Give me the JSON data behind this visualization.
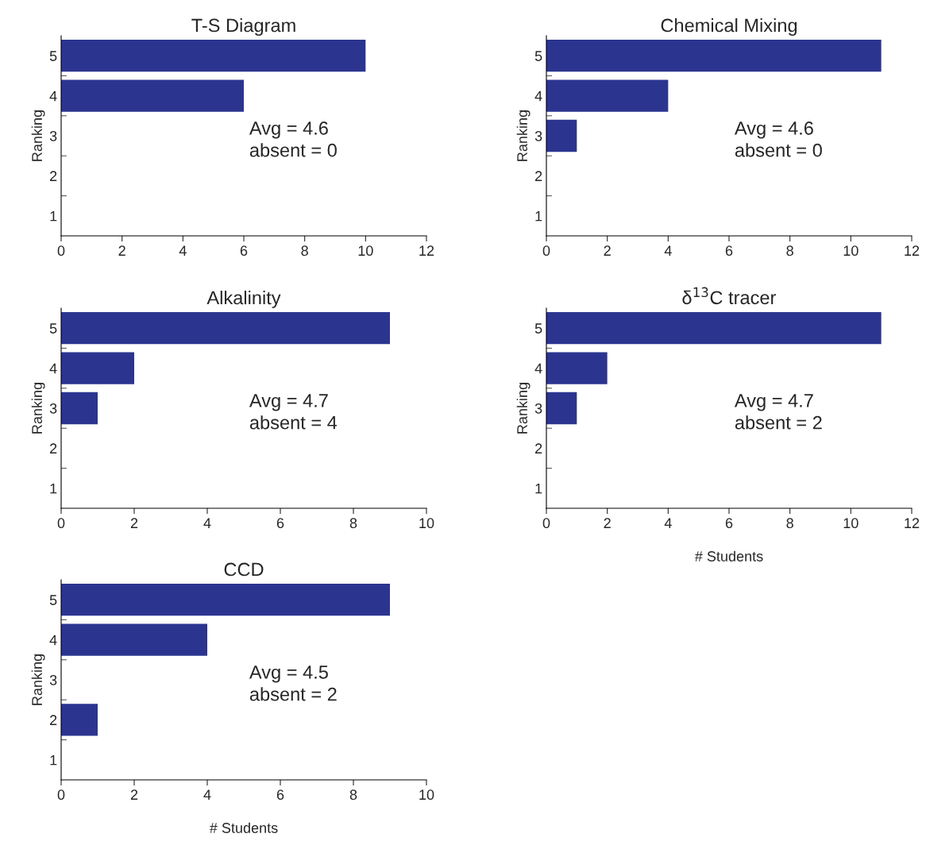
{
  "chart_data": [
    {
      "type": "bar",
      "orientation": "horizontal",
      "title": "T-S Diagram",
      "ylabel": "Ranking",
      "categories": [
        "5",
        "4",
        "3",
        "2",
        "1"
      ],
      "values": [
        10,
        6,
        0,
        0,
        0
      ],
      "color": "#2b3590",
      "xlim": [
        0,
        12
      ],
      "xticks": [
        0,
        2,
        4,
        6,
        8,
        10,
        12
      ],
      "grid": false,
      "legend": false,
      "annotations": [
        "Avg = 4.6",
        "absent = 0"
      ]
    },
    {
      "type": "bar",
      "orientation": "horizontal",
      "title": "Chemical Mixing",
      "ylabel": "Ranking",
      "categories": [
        "5",
        "4",
        "3",
        "2",
        "1"
      ],
      "values": [
        11,
        4,
        1,
        0,
        0
      ],
      "color": "#2b3590",
      "xlim": [
        0,
        12
      ],
      "xticks": [
        0,
        2,
        4,
        6,
        8,
        10,
        12
      ],
      "grid": false,
      "legend": false,
      "annotations": [
        "Avg = 4.6",
        "absent = 0"
      ]
    },
    {
      "type": "bar",
      "orientation": "horizontal",
      "title": "Alkalinity",
      "ylabel": "Ranking",
      "categories": [
        "5",
        "4",
        "3",
        "2",
        "1"
      ],
      "values": [
        9,
        2,
        1,
        0,
        0
      ],
      "color": "#2b3590",
      "xlim": [
        0,
        10
      ],
      "xticks": [
        0,
        2,
        4,
        6,
        8,
        10
      ],
      "grid": false,
      "legend": false,
      "annotations": [
        "Avg = 4.7",
        "absent = 4"
      ]
    },
    {
      "type": "bar",
      "orientation": "horizontal",
      "title": "δ$^{13}$C tracer",
      "ylabel": "Ranking",
      "xlabel": "# Students",
      "categories": [
        "5",
        "4",
        "3",
        "2",
        "1"
      ],
      "values": [
        11,
        2,
        1,
        0,
        0
      ],
      "color": "#2b3590",
      "xlim": [
        0,
        12
      ],
      "xticks": [
        0,
        2,
        4,
        6,
        8,
        10,
        12
      ],
      "grid": false,
      "legend": false,
      "annotations": [
        "Avg = 4.7",
        "absent = 2"
      ]
    },
    {
      "type": "bar",
      "orientation": "horizontal",
      "title": "CCD",
      "ylabel": "Ranking",
      "xlabel": "# Students",
      "categories": [
        "5",
        "4",
        "3",
        "2",
        "1"
      ],
      "values": [
        9,
        4,
        0,
        1,
        0
      ],
      "color": "#2b3590",
      "xlim": [
        0,
        10
      ],
      "xticks": [
        0,
        2,
        4,
        6,
        8,
        10
      ],
      "grid": false,
      "legend": false,
      "annotations": [
        "Avg = 4.5",
        "absent = 2"
      ]
    }
  ]
}
